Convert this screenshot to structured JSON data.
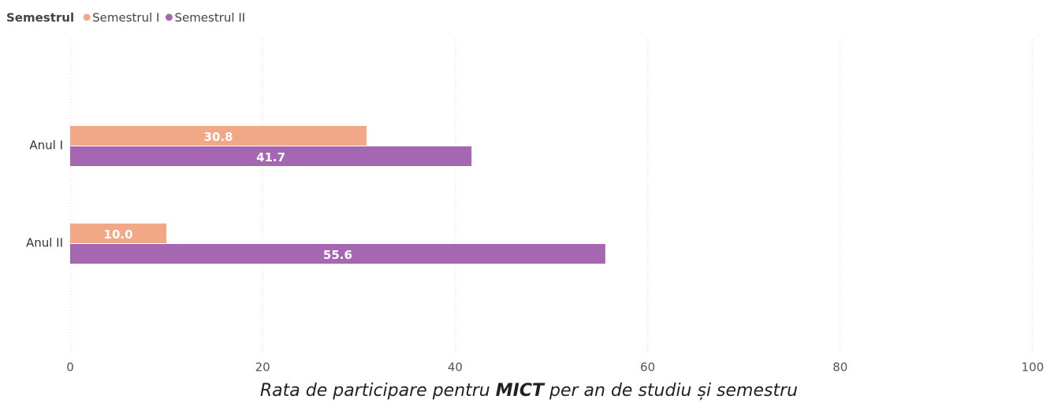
{
  "chart_data": {
    "type": "hbar",
    "legend_title": "Semestrul",
    "categories": [
      "Anul I",
      "Anul II"
    ],
    "series": [
      {
        "name": "Semestrul I",
        "color": "#f2a886",
        "values": [
          30.8,
          10
        ],
        "value_labels": [
          "30.8",
          "10.0"
        ]
      },
      {
        "name": "Semestrul II",
        "color": "#a667b2",
        "values": [
          41.7,
          55.6
        ],
        "value_labels": [
          "41.7",
          "55.6"
        ]
      }
    ],
    "xlim": [
      0,
      100
    ],
    "xticks": [
      0,
      20,
      40,
      60,
      80,
      100
    ],
    "grid": true,
    "caption": [
      "Rata de participare pentru",
      "MICT",
      "per an de studiu și semestru"
    ]
  }
}
